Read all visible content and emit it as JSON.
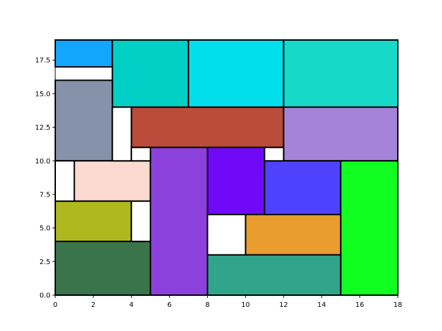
{
  "chart_data": {
    "type": "treemap",
    "title": "",
    "xlabel": "",
    "ylabel": "",
    "xlim": [
      0,
      18
    ],
    "ylim": [
      0,
      19
    ],
    "grid": false,
    "x_ticks": [
      0,
      2,
      4,
      6,
      8,
      10,
      12,
      14,
      16,
      18
    ],
    "x_tick_labels": [
      "0",
      "2",
      "4",
      "6",
      "8",
      "10",
      "12",
      "14",
      "16",
      "18"
    ],
    "y_ticks": [
      0,
      2.5,
      5,
      7.5,
      10,
      12.5,
      15,
      17.5
    ],
    "y_tick_labels": [
      "0.0",
      "2.5",
      "5.0",
      "7.5",
      "10.0",
      "12.5",
      "15.0",
      "17.5"
    ],
    "rectangles": [
      {
        "x": 0,
        "y": 17,
        "w": 3,
        "h": 2,
        "color": "#13a6ff"
      },
      {
        "x": 3,
        "y": 14,
        "w": 4,
        "h": 5,
        "color": "#00cfc5"
      },
      {
        "x": 7,
        "y": 14,
        "w": 5,
        "h": 5,
        "color": "#00dfeb"
      },
      {
        "x": 12,
        "y": 14,
        "w": 6,
        "h": 5,
        "color": "#17d9c9"
      },
      {
        "x": 0,
        "y": 10,
        "w": 3,
        "h": 6,
        "color": "#8692a9"
      },
      {
        "x": 4,
        "y": 11,
        "w": 8,
        "h": 3,
        "color": "#bb4b3a"
      },
      {
        "x": 12,
        "y": 10,
        "w": 6,
        "h": 4,
        "color": "#a583d9"
      },
      {
        "x": 1,
        "y": 7,
        "w": 4,
        "h": 3,
        "color": "#fcdad1"
      },
      {
        "x": 5,
        "y": 0,
        "w": 3,
        "h": 11,
        "color": "#8c41dd"
      },
      {
        "x": 8,
        "y": 6,
        "w": 3,
        "h": 5,
        "color": "#7009f8"
      },
      {
        "x": 11,
        "y": 6,
        "w": 4,
        "h": 4,
        "color": "#4f42fe"
      },
      {
        "x": 15,
        "y": 0,
        "w": 3,
        "h": 10,
        "color": "#10ff21"
      },
      {
        "x": 0,
        "y": 4,
        "w": 4,
        "h": 3,
        "color": "#afb81e"
      },
      {
        "x": 10,
        "y": 3,
        "w": 5,
        "h": 3,
        "color": "#e89d2e"
      },
      {
        "x": 0,
        "y": 0,
        "w": 5,
        "h": 4,
        "color": "#3a744b"
      },
      {
        "x": 8,
        "y": 0,
        "w": 7,
        "h": 3,
        "color": "#31a48c"
      }
    ],
    "empty_cells": [
      {
        "x": 3,
        "y": 10,
        "w": 1,
        "h": 4
      },
      {
        "x": 4,
        "y": 10,
        "w": 1,
        "h": 1
      },
      {
        "x": 11,
        "y": 10,
        "w": 1,
        "h": 1
      },
      {
        "x": 0,
        "y": 7,
        "w": 1,
        "h": 3
      },
      {
        "x": 4,
        "y": 4,
        "w": 1,
        "h": 3
      },
      {
        "x": 8,
        "y": 3,
        "w": 2,
        "h": 3
      }
    ]
  }
}
